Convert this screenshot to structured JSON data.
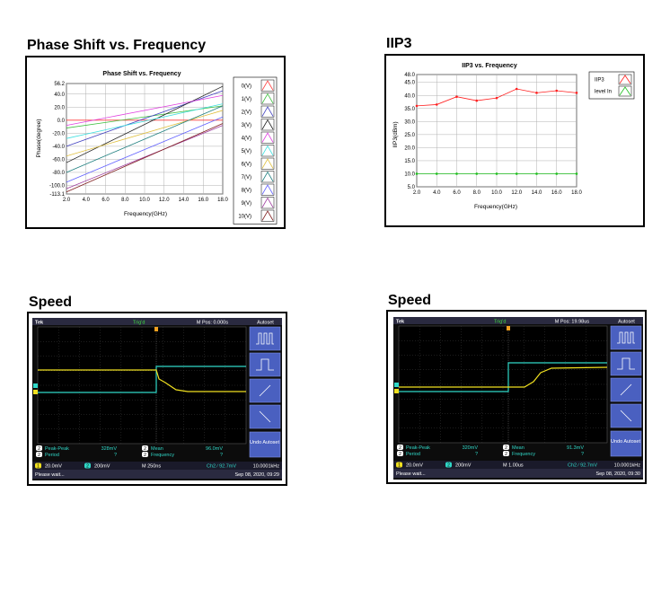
{
  "titles": {
    "phase": "Phase Shift vs. Frequency",
    "iip3": "IIP3",
    "speed1": "Speed",
    "speed2": "Speed"
  },
  "chart_data": [
    {
      "type": "line",
      "title": "Phase Shift vs. Frequency",
      "xlabel": "Frequency(GHz)",
      "ylabel": "Phase(degree)",
      "xlim": [
        2.0,
        18.0
      ],
      "ylim": [
        -113.1,
        56.2
      ],
      "xticks": [
        "2.0",
        "4.0",
        "6.0",
        "8.0",
        "10.0",
        "12.0",
        "14.0",
        "16.0",
        "18.0"
      ],
      "yticks": [
        "56.2",
        "40.0",
        "20.0",
        "0.0",
        "-20.0",
        "-40.0",
        "-60.0",
        "-80.0",
        "-100.0",
        "-113.1"
      ],
      "grid": true,
      "legend_position": "right",
      "series": [
        {
          "name": "0(V)",
          "color": "#ff4040",
          "x": [
            2,
            18
          ],
          "y": [
            0,
            0
          ]
        },
        {
          "name": "1(V)",
          "color": "#40c040",
          "x": [
            2,
            18
          ],
          "y": [
            -12,
            22
          ]
        },
        {
          "name": "2(V)",
          "color": "#4040c0",
          "x": [
            2,
            18
          ],
          "y": [
            -40,
            45
          ]
        },
        {
          "name": "3(V)",
          "color": "#202020",
          "x": [
            2,
            18
          ],
          "y": [
            -65,
            52
          ]
        },
        {
          "name": "4(V)",
          "color": "#e040e0",
          "x": [
            2,
            18
          ],
          "y": [
            -8,
            38
          ]
        },
        {
          "name": "5(V)",
          "color": "#40e0e0",
          "x": [
            2,
            18
          ],
          "y": [
            -28,
            25
          ]
        },
        {
          "name": "6(V)",
          "color": "#e0c040",
          "x": [
            2,
            18
          ],
          "y": [
            -55,
            15
          ]
        },
        {
          "name": "7(V)",
          "color": "#208080",
          "x": [
            2,
            18
          ],
          "y": [
            -80,
            22
          ]
        },
        {
          "name": "8(V)",
          "color": "#6060ff",
          "x": [
            2,
            18
          ],
          "y": [
            -95,
            5
          ]
        },
        {
          "name": "9(V)",
          "color": "#a040a0",
          "x": [
            2,
            18
          ],
          "y": [
            -105,
            -8
          ]
        },
        {
          "name": "10(V)",
          "color": "#802020",
          "x": [
            2,
            18
          ],
          "y": [
            -110,
            -5
          ]
        }
      ]
    },
    {
      "type": "line",
      "title": "IIP3 vs. Frequency",
      "xlabel": "Frequency(GHz)",
      "ylabel": "IIP3(dBm)",
      "xlim": [
        2.0,
        18.0
      ],
      "ylim": [
        5.0,
        48.0
      ],
      "xticks": [
        "2.0",
        "4.0",
        "6.0",
        "8.0",
        "10.0",
        "12.0",
        "14.0",
        "16.0",
        "18.0"
      ],
      "yticks": [
        "48.0",
        "45.0",
        "40.0",
        "35.0",
        "30.0",
        "25.0",
        "20.0",
        "15.0",
        "10.0",
        "5.0"
      ],
      "grid": true,
      "legend_position": "right",
      "series": [
        {
          "name": "IIP3",
          "color": "#ff2020",
          "x": [
            2,
            4,
            6,
            8,
            10,
            12,
            14,
            16,
            18
          ],
          "y": [
            36.0,
            36.5,
            39.5,
            38.0,
            39.0,
            42.5,
            41.0,
            41.8,
            41.0
          ]
        },
        {
          "name": "level In",
          "color": "#20c020",
          "x": [
            2,
            4,
            6,
            8,
            10,
            12,
            14,
            16,
            18
          ],
          "y": [
            10,
            10,
            10,
            10,
            10,
            10,
            10,
            10,
            10
          ]
        }
      ]
    }
  ],
  "scope1": {
    "top_left": "Tek",
    "trig": "Trig'd",
    "mpos": "M Pos: 0.000s",
    "autoset": "Autoset",
    "undo": "Undo Autoset",
    "m1_label": "Peak-Peak",
    "m1_value": "328mV",
    "m2_label": "Period",
    "m2_value": "?",
    "m3_label": "Mean",
    "m3_value": "96.0mV",
    "m4_label": "Frequency",
    "m4_value": "?",
    "ch1": "20.0mV",
    "ch2": "200mV",
    "time": "M 250ns",
    "trigger": "Ch2 ∕ 92.7mV",
    "freq": "10.0001kHz",
    "status": "Please wait...",
    "date": "Sep 08, 2020, 09:29",
    "ch1_num": "1",
    "ch2_num": "2"
  },
  "scope2": {
    "top_left": "Tek",
    "trig": "Trig'd",
    "mpos": "M Pos: 19.98us",
    "autoset": "Autoset",
    "undo": "Undo Autoset",
    "m1_label": "Peak-Peak",
    "m1_value": "320mV",
    "m2_label": "Period",
    "m2_value": "?",
    "m3_label": "Mean",
    "m3_value": "91.3mV",
    "m4_label": "Frequency",
    "m4_value": "?",
    "ch1": "20.0mV",
    "ch2": "200mV",
    "time": "M 1.00us",
    "trigger": "Ch2 ∕ 92.7mV",
    "freq": "10.0001kHz",
    "status": "Please wait...",
    "date": "Sep 08, 2020, 09:30",
    "ch1_num": "1",
    "ch2_num": "2"
  }
}
